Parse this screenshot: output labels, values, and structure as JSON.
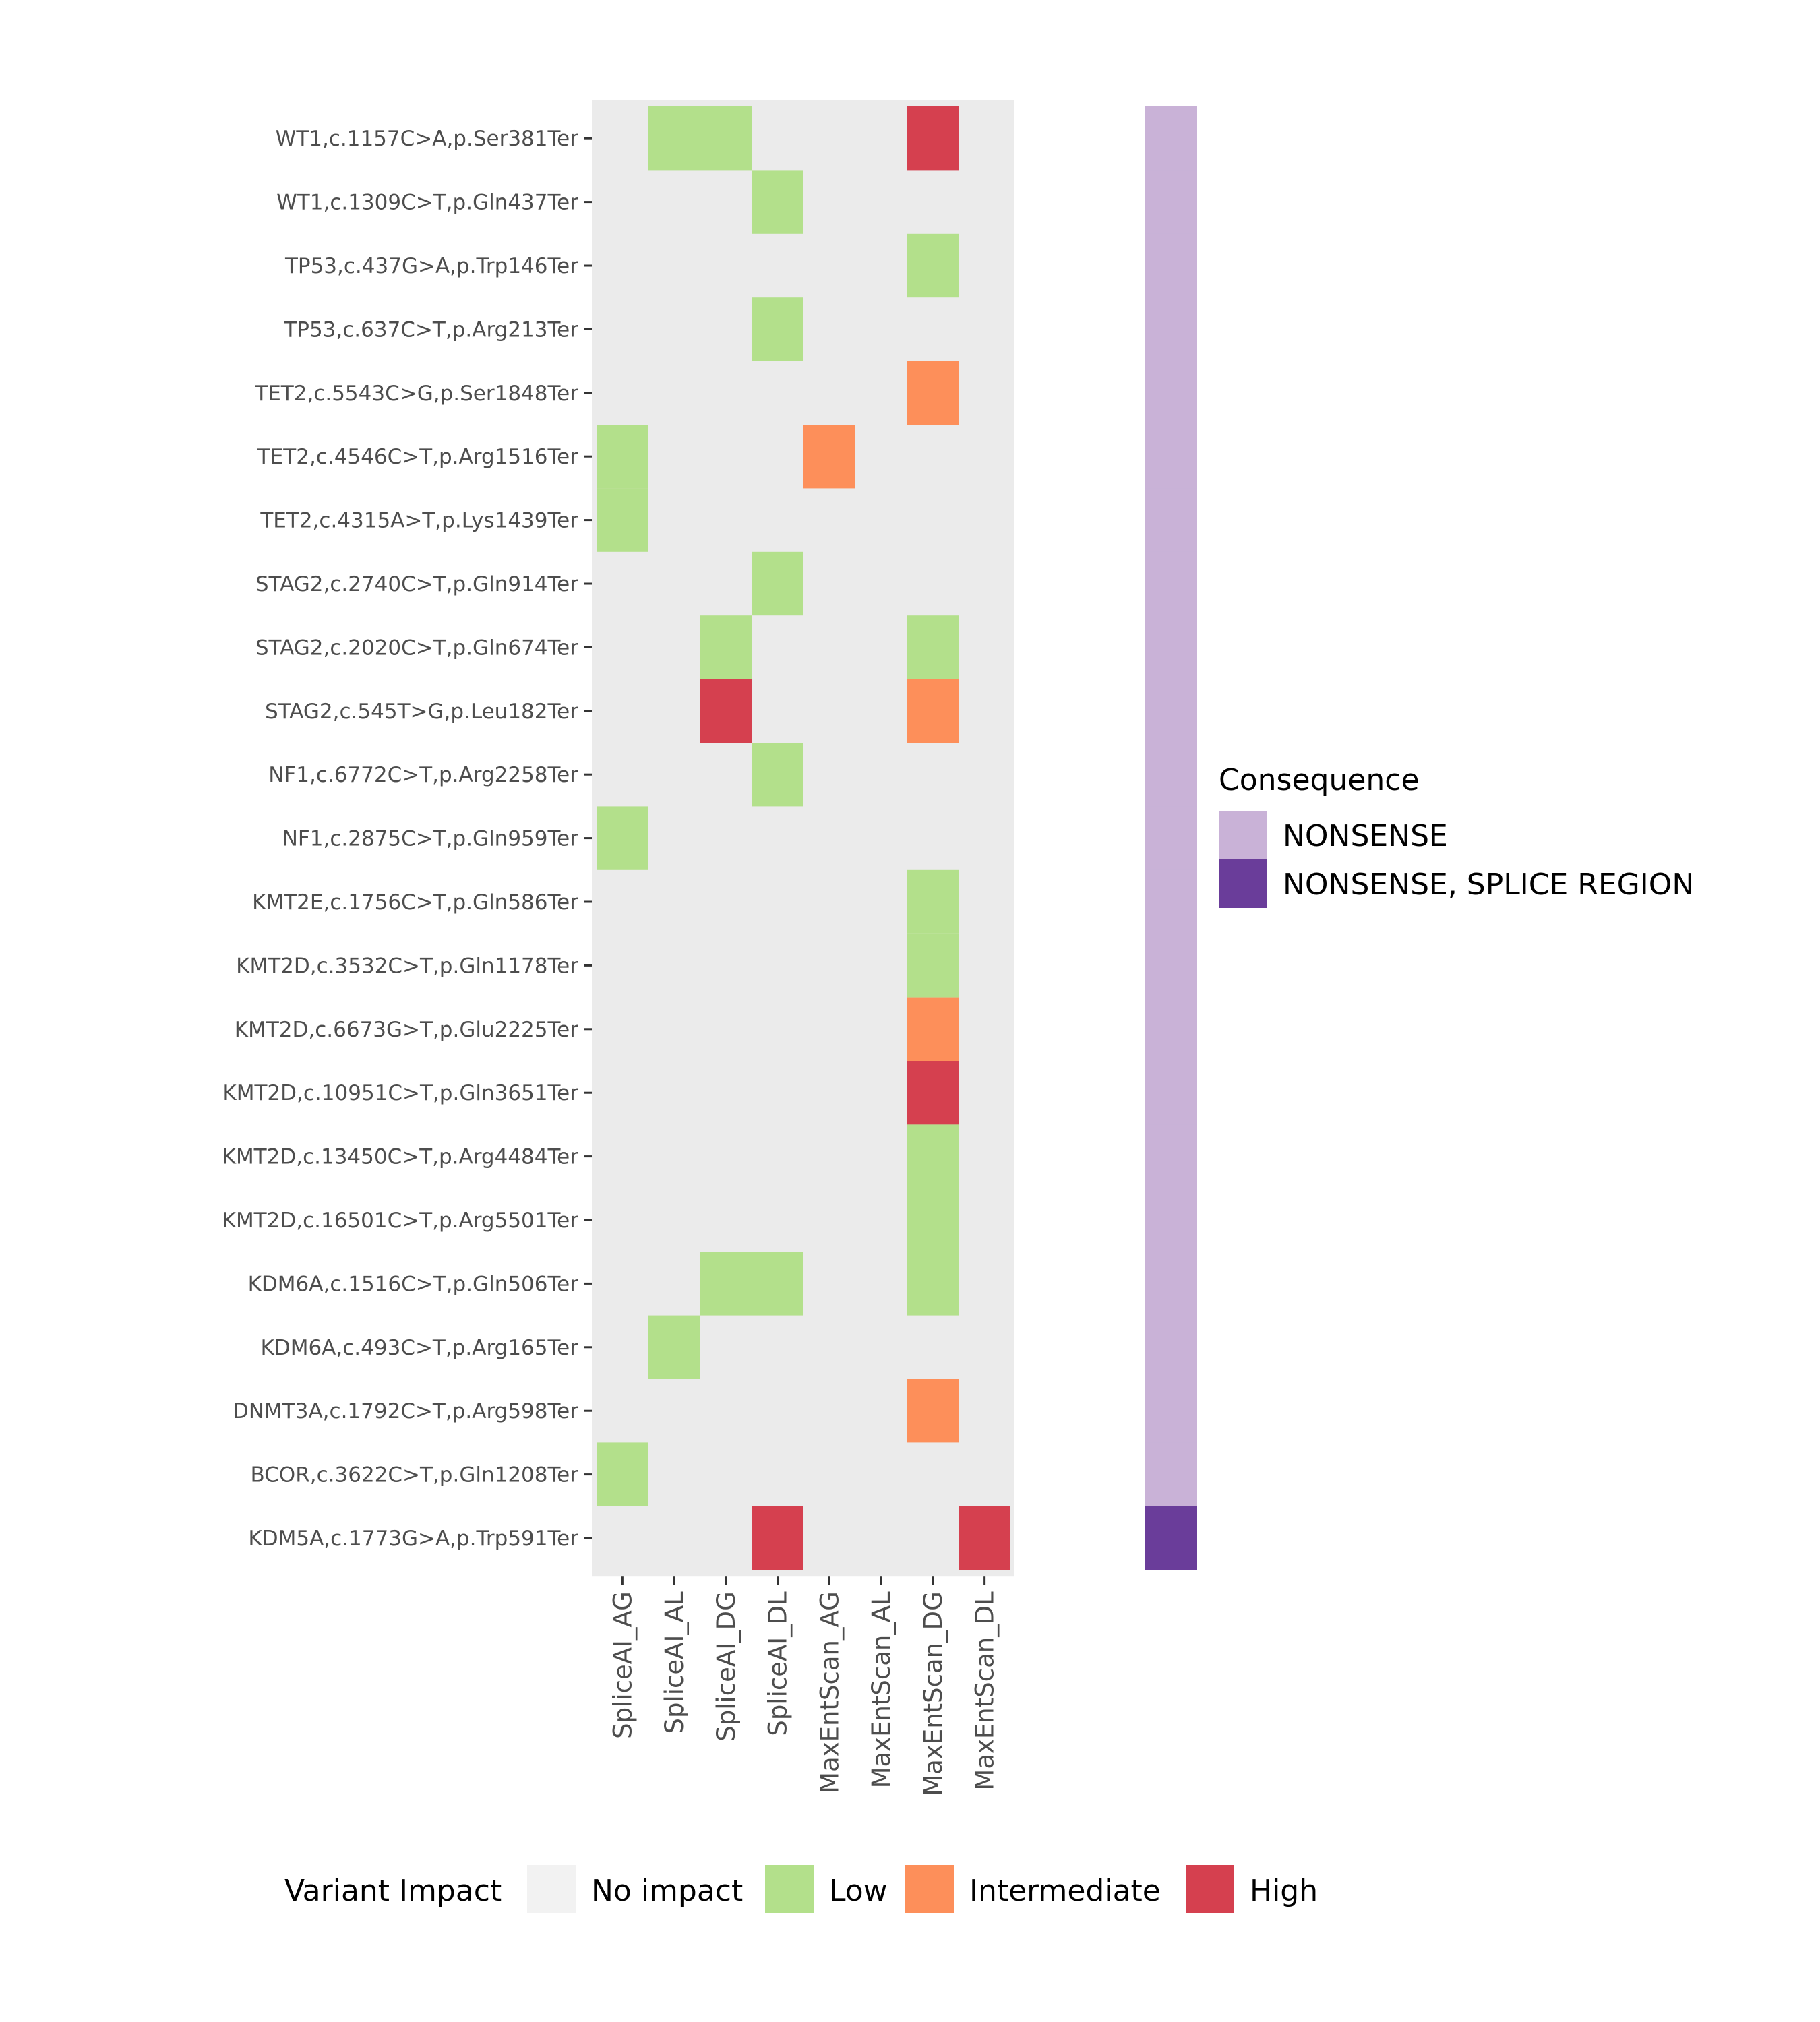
{
  "chart_data": {
    "type": "heatmap",
    "rows": [
      "WT1,c.1157C>A,p.Ser381Ter",
      "WT1,c.1309C>T,p.Gln437Ter",
      "TP53,c.437G>A,p.Trp146Ter",
      "TP53,c.637C>T,p.Arg213Ter",
      "TET2,c.5543C>G,p.Ser1848Ter",
      "TET2,c.4546C>T,p.Arg1516Ter",
      "TET2,c.4315A>T,p.Lys1439Ter",
      "STAG2,c.2740C>T,p.Gln914Ter",
      "STAG2,c.2020C>T,p.Gln674Ter",
      "STAG2,c.545T>G,p.Leu182Ter",
      "NF1,c.6772C>T,p.Arg2258Ter",
      "NF1,c.2875C>T,p.Gln959Ter",
      "KMT2E,c.1756C>T,p.Gln586Ter",
      "KMT2D,c.3532C>T,p.Gln1178Ter",
      "KMT2D,c.6673G>T,p.Glu2225Ter",
      "KMT2D,c.10951C>T,p.Gln3651Ter",
      "KMT2D,c.13450C>T,p.Arg4484Ter",
      "KMT2D,c.16501C>T,p.Arg5501Ter",
      "KDM6A,c.1516C>T,p.Gln506Ter",
      "KDM6A,c.493C>T,p.Arg165Ter",
      "DNMT3A,c.1792C>T,p.Arg598Ter",
      "BCOR,c.3622C>T,p.Gln1208Ter",
      "KDM5A,c.1773G>A,p.Trp591Ter"
    ],
    "columns": [
      "SpliceAI_AG",
      "SpliceAI_AL",
      "SpliceAI_DG",
      "SpliceAI_DL",
      "MaxEntScan_AG",
      "MaxEntScan_AL",
      "MaxEntScan_DG",
      "MaxEntScan_DL"
    ],
    "cells": [
      [
        null,
        "Low",
        "Low",
        null,
        null,
        null,
        "High",
        null
      ],
      [
        null,
        null,
        null,
        "Low",
        null,
        null,
        null,
        null
      ],
      [
        null,
        null,
        null,
        null,
        null,
        null,
        "Low",
        null
      ],
      [
        null,
        null,
        null,
        "Low",
        null,
        null,
        null,
        null
      ],
      [
        null,
        null,
        null,
        null,
        null,
        null,
        "Intermediate",
        null
      ],
      [
        "Low",
        null,
        null,
        null,
        "Intermediate",
        null,
        null,
        null
      ],
      [
        "Low",
        null,
        null,
        null,
        null,
        null,
        null,
        null
      ],
      [
        null,
        null,
        null,
        "Low",
        null,
        null,
        null,
        null
      ],
      [
        null,
        null,
        "Low",
        null,
        null,
        null,
        "Low",
        null
      ],
      [
        null,
        null,
        "High",
        null,
        null,
        null,
        "Intermediate",
        null
      ],
      [
        null,
        null,
        null,
        "Low",
        null,
        null,
        null,
        null
      ],
      [
        "Low",
        null,
        null,
        null,
        null,
        null,
        null,
        null
      ],
      [
        null,
        null,
        null,
        null,
        null,
        null,
        "Low",
        null
      ],
      [
        null,
        null,
        null,
        null,
        null,
        null,
        "Low",
        null
      ],
      [
        null,
        null,
        null,
        null,
        null,
        null,
        "Intermediate",
        null
      ],
      [
        null,
        null,
        null,
        null,
        null,
        null,
        "High",
        null
      ],
      [
        null,
        null,
        null,
        null,
        null,
        null,
        "Low",
        null
      ],
      [
        null,
        null,
        null,
        null,
        null,
        null,
        "Low",
        null
      ],
      [
        null,
        null,
        "Low",
        "Low",
        null,
        null,
        "Low",
        null
      ],
      [
        null,
        "Low",
        null,
        null,
        null,
        null,
        null,
        null
      ],
      [
        null,
        null,
        null,
        null,
        null,
        null,
        "Intermediate",
        null
      ],
      [
        "Low",
        null,
        null,
        null,
        null,
        null,
        null,
        null
      ],
      [
        null,
        null,
        null,
        "High",
        null,
        null,
        null,
        "High"
      ]
    ],
    "consequence": [
      "NONSENSE",
      "NONSENSE",
      "NONSENSE",
      "NONSENSE",
      "NONSENSE",
      "NONSENSE",
      "NONSENSE",
      "NONSENSE",
      "NONSENSE",
      "NONSENSE",
      "NONSENSE",
      "NONSENSE",
      "NONSENSE",
      "NONSENSE",
      "NONSENSE",
      "NONSENSE",
      "NONSENSE",
      "NONSENSE",
      "NONSENSE",
      "NONSENSE",
      "NONSENSE",
      "NONSENSE",
      "NONSENSE, SPLICE REGION"
    ],
    "impact_legend": {
      "title": "Variant Impact",
      "levels": [
        {
          "label": "No impact",
          "color": "#f2f2f2"
        },
        {
          "label": "Low",
          "color": "#b3e08b"
        },
        {
          "label": "Intermediate",
          "color": "#fd8f5a"
        },
        {
          "label": "High",
          "color": "#d5404f"
        }
      ]
    },
    "consequence_legend": {
      "title": "Consequence",
      "levels": [
        {
          "label": "NONSENSE",
          "color": "#c9b2d7"
        },
        {
          "label": "NONSENSE, SPLICE REGION",
          "color": "#6a3d9a"
        }
      ]
    },
    "panel_background": "#ebebeb",
    "legend_position": "consequence right, variant impact bottom"
  }
}
